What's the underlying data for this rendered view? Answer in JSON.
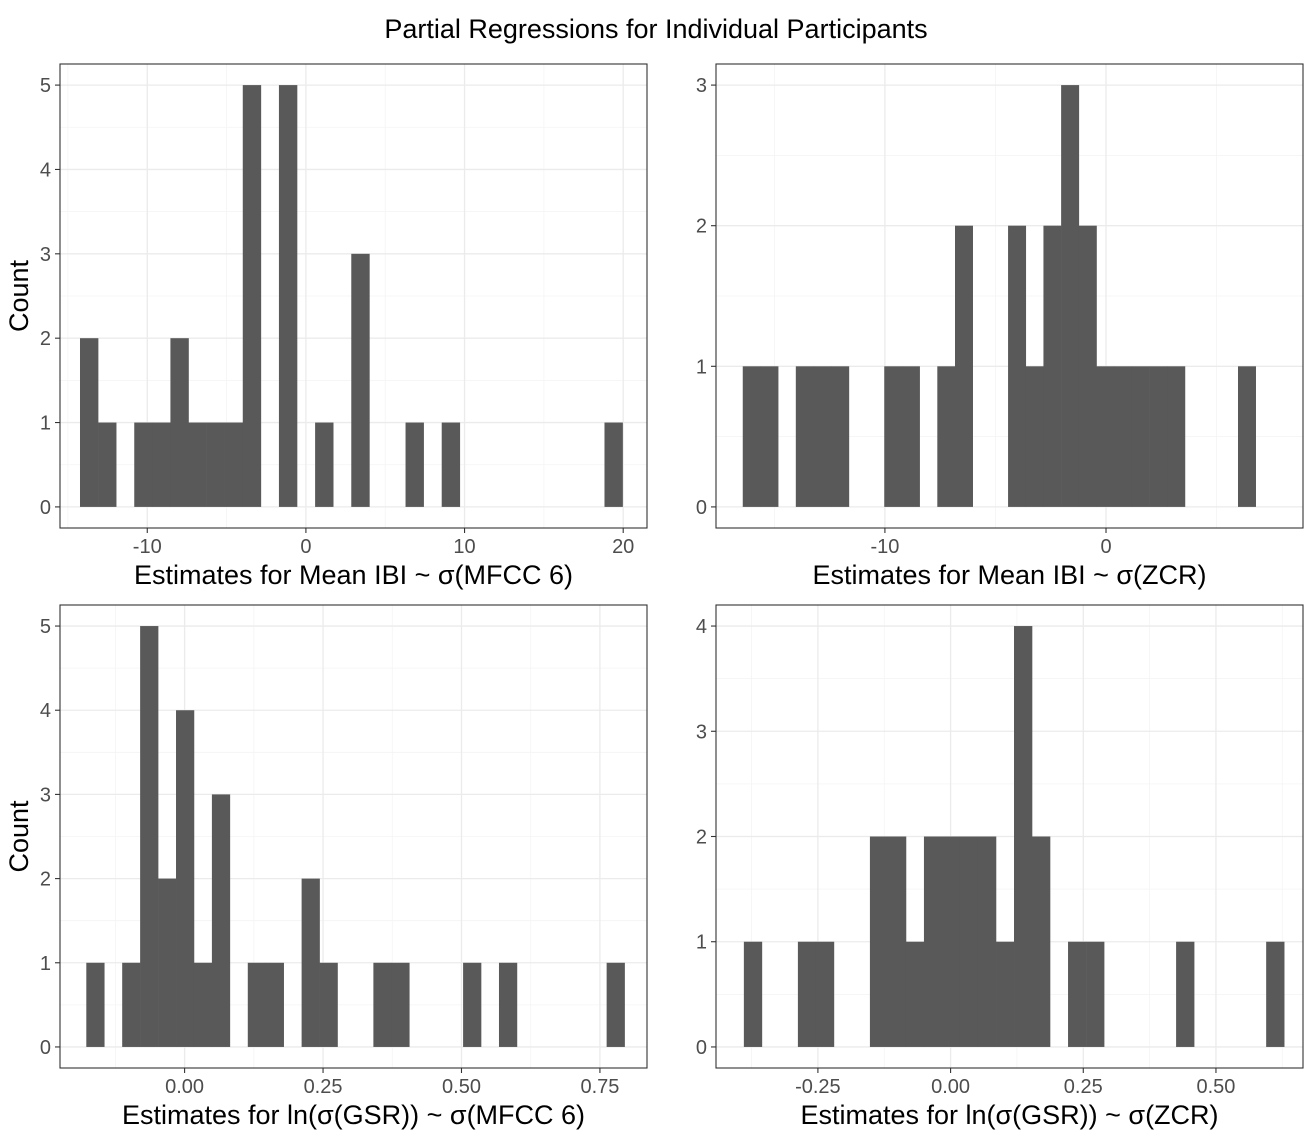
{
  "figure": {
    "title": "Partial Regressions for Individual Participants"
  },
  "chart_data": [
    {
      "type": "bar",
      "subtype": "histogram",
      "xlabel": "Estimates for Mean IBI ~ σ(MFCC 6)",
      "ylabel": "Count",
      "xlim": [
        -15.5,
        21.5
      ],
      "ylim": [
        -0.25,
        5.25
      ],
      "xticks": [
        -10,
        0,
        10,
        20
      ],
      "xtick_labels": [
        "-10",
        "0",
        "10",
        "20"
      ],
      "yticks": [
        0,
        1,
        2,
        3,
        4,
        5
      ],
      "ytick_labels": [
        "0",
        "1",
        "2",
        "3",
        "4",
        "5"
      ],
      "grid": true,
      "bin_width": 1.14,
      "bins_start": [
        -14.24,
        -13.1,
        -11.96,
        -10.82,
        -9.68,
        -8.54,
        -7.4,
        -6.26,
        -5.12,
        -3.98,
        -2.84,
        -1.7,
        -0.56,
        0.58,
        1.72,
        2.86,
        4.0,
        5.14,
        6.28,
        7.42,
        8.56,
        9.7,
        10.84,
        11.98,
        13.12,
        14.26,
        15.4,
        16.54,
        17.68,
        18.82
      ],
      "counts": [
        2,
        1,
        0,
        1,
        1,
        2,
        1,
        1,
        1,
        5,
        0,
        5,
        0,
        1,
        0,
        3,
        0,
        0,
        1,
        0,
        1,
        0,
        0,
        0,
        0,
        0,
        0,
        0,
        0,
        1
      ]
    },
    {
      "type": "bar",
      "subtype": "histogram",
      "xlabel": "Estimates for Mean IBI ~ σ(ZCR)",
      "ylabel": "",
      "xlim": [
        -17.64,
        8.91
      ],
      "ylim": [
        -0.15,
        3.15
      ],
      "xticks": [
        -10,
        0
      ],
      "xtick_labels": [
        "-10",
        "0"
      ],
      "yticks": [
        0,
        1,
        2,
        3
      ],
      "ytick_labels": [
        "0",
        "1",
        "2",
        "3"
      ],
      "grid": true,
      "bin_width": 0.8,
      "bins_start": [
        -16.43,
        -15.63,
        -14.83,
        -14.03,
        -13.23,
        -12.43,
        -11.63,
        -10.83,
        -10.03,
        -9.23,
        -8.43,
        -7.63,
        -6.83,
        -6.03,
        -5.23,
        -4.43,
        -3.63,
        -2.83,
        -2.03,
        -1.23,
        -0.43,
        0.37,
        1.17,
        1.97,
        2.77,
        3.57,
        4.37,
        5.17,
        5.97,
        6.77
      ],
      "counts": [
        1,
        1,
        0,
        1,
        1,
        1,
        0,
        0,
        1,
        1,
        0,
        1,
        2,
        0,
        0,
        2,
        1,
        2,
        3,
        2,
        1,
        1,
        1,
        1,
        1,
        0,
        0,
        0,
        1,
        0
      ]
    },
    {
      "type": "bar",
      "subtype": "histogram",
      "xlabel": "Estimates for ln(σ(GSR)) ~ σ(MFCC 6)",
      "ylabel": "Count",
      "xlim": [
        -0.225,
        0.835
      ],
      "ylim": [
        -0.25,
        5.25
      ],
      "xticks": [
        0.0,
        0.25,
        0.5,
        0.75
      ],
      "xtick_labels": [
        "0.00",
        "0.25",
        "0.50",
        "0.75"
      ],
      "yticks": [
        0,
        1,
        2,
        3,
        4,
        5
      ],
      "ytick_labels": [
        "0",
        "1",
        "2",
        "3",
        "4",
        "5"
      ],
      "grid": true,
      "bin_width": 0.0324,
      "bins_start": [
        -0.1775,
        -0.1451,
        -0.1127,
        -0.0803,
        -0.0479,
        -0.0155,
        0.0169,
        0.0493,
        0.0817,
        0.1141,
        0.1465,
        0.1789,
        0.2113,
        0.2437,
        0.2761,
        0.3085,
        0.3409,
        0.3733,
        0.4057,
        0.4381,
        0.4705,
        0.5029,
        0.5353,
        0.5677,
        0.6001,
        0.6325,
        0.6649,
        0.6973,
        0.7297,
        0.7621
      ],
      "counts": [
        1,
        0,
        1,
        5,
        2,
        4,
        1,
        3,
        0,
        1,
        1,
        0,
        2,
        1,
        0,
        0,
        1,
        1,
        0,
        0,
        0,
        1,
        0,
        1,
        0,
        0,
        0,
        0,
        0,
        1
      ]
    },
    {
      "type": "bar",
      "subtype": "histogram",
      "xlabel": "Estimates for ln(σ(GSR)) ~ σ(ZCR)",
      "ylabel": "",
      "xlim": [
        -0.442,
        0.664
      ],
      "ylim": [
        -0.2,
        4.2
      ],
      "xticks": [
        -0.25,
        0.0,
        0.25,
        0.5
      ],
      "xtick_labels": [
        "-0.25",
        "0.00",
        "0.25",
        "0.50"
      ],
      "yticks": [
        0,
        1,
        2,
        3,
        4
      ],
      "ytick_labels": [
        "0",
        "1",
        "2",
        "3",
        "4"
      ],
      "grid": true,
      "bin_width": 0.03393,
      "bins_start": [
        -0.3895,
        -0.3556,
        -0.3217,
        -0.2877,
        -0.2538,
        -0.2198,
        -0.1859,
        -0.152,
        -0.118,
        -0.0841,
        -0.0502,
        -0.0162,
        0.0177,
        0.0516,
        0.0856,
        0.1195,
        0.1534,
        0.1874,
        0.2213,
        0.2553,
        0.2892,
        0.3231,
        0.3571,
        0.391,
        0.4249,
        0.4589,
        0.4928,
        0.5267,
        0.5607,
        0.5946
      ],
      "counts": [
        1,
        0,
        0,
        1,
        1,
        0,
        0,
        2,
        2,
        1,
        2,
        2,
        2,
        2,
        1,
        4,
        2,
        0,
        1,
        1,
        0,
        0,
        0,
        0,
        1,
        0,
        0,
        0,
        0,
        1
      ]
    }
  ]
}
